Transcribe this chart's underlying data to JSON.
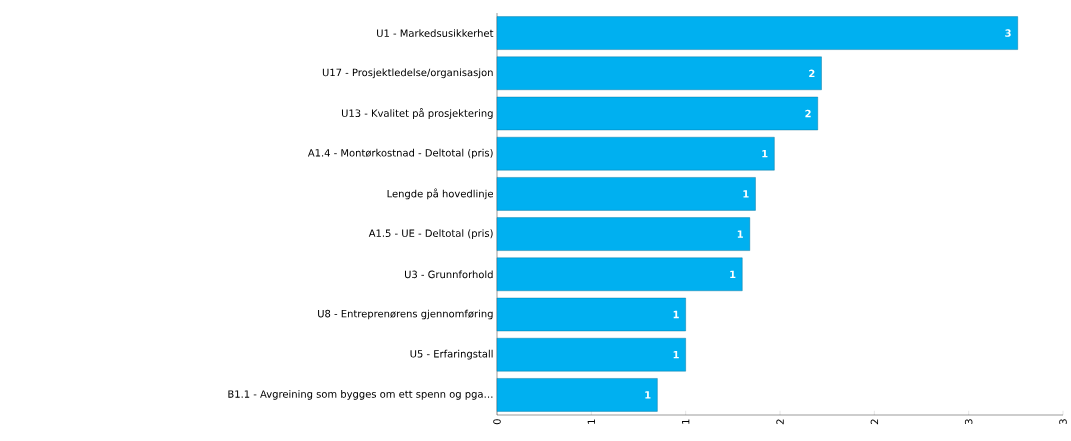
{
  "chart_data": {
    "type": "bar",
    "orientation": "horizontal",
    "color": "#00b0f0",
    "categories": [
      "U1 - Markedsusikkerhet",
      "U17 - Prosjektledelse/organisasjon",
      "U13 - Kvalitet på prosjektering",
      "A1.4 - Montørkostnad - Deltotal (pris)",
      "Lengde på hovedlinje",
      "A1.5 - UE - Deltotal (pris)",
      "U3 - Grunnforhold",
      "U8 - Entreprenørens gjennomføring",
      "U5 - Erfaringstall",
      "B1.1 - Avgreining som bygges om ett spenn og pga…"
    ],
    "values": [
      2.76,
      1.72,
      1.7,
      1.47,
      1.37,
      1.34,
      1.3,
      1.0,
      1.0,
      0.85
    ],
    "value_labels": [
      "3",
      "2",
      "2",
      "1",
      "1",
      "1",
      "1",
      "1",
      "1",
      "1"
    ],
    "xlim": [
      0,
      3
    ],
    "xticks": [
      0,
      {
        "value": 0.5,
        "label": "1"
      },
      1,
      {
        "value": 1.5,
        "label": "2"
      },
      2,
      {
        "value": 2.5,
        "label": "3"
      },
      3
    ],
    "grid": false
  }
}
